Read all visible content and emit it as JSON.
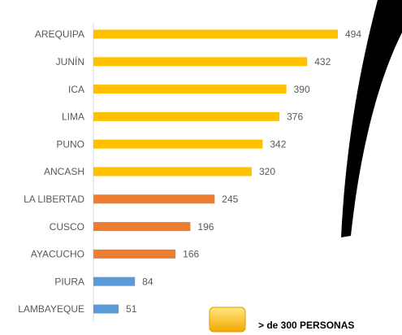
{
  "chart_data": {
    "type": "bar",
    "orientation": "horizontal",
    "categories": [
      "AREQUIPA",
      "JUNÍN",
      "ICA",
      "LIMA",
      "PUNO",
      "ANCASH",
      "LA LIBERTAD",
      "CUSCO",
      "AYACUCHO",
      "PIURA",
      "LAMBAYEQUE"
    ],
    "values": [
      494,
      432,
      390,
      376,
      342,
      320,
      245,
      196,
      166,
      84,
      51
    ],
    "colors": [
      "#ffc000",
      "#ffc000",
      "#ffc000",
      "#ffc000",
      "#ffc000",
      "#ffc000",
      "#ed7d31",
      "#ed7d31",
      "#ed7d31",
      "#5b9bd5",
      "#5b9bd5"
    ],
    "legend": [
      {
        "label": "> de 300 PERSONAS",
        "color": "#ffc000"
      }
    ]
  }
}
